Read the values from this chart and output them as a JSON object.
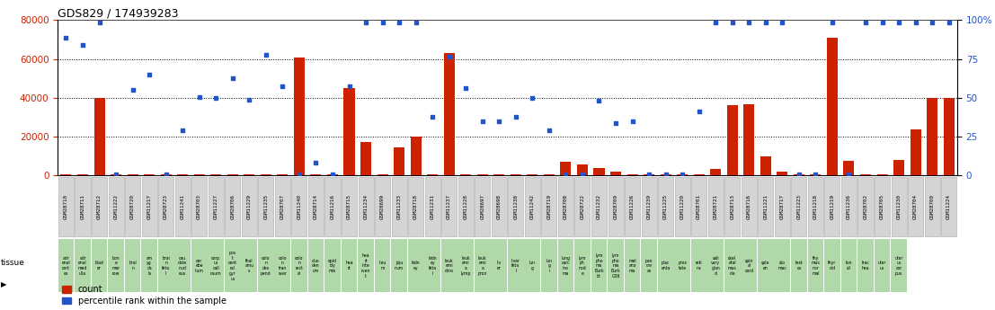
{
  "title": "GDS829 / 174939283",
  "samples": [
    "GSM28710",
    "GSM28711",
    "GSM28712",
    "GSM11222",
    "GSM28720",
    "GSM11217",
    "GSM28723",
    "GSM11241",
    "GSM28703",
    "GSM11227",
    "GSM28706",
    "GSM11229",
    "GSM11235",
    "GSM28707",
    "GSM11240",
    "GSM28714",
    "GSM11216",
    "GSM28715",
    "GSM11234",
    "GSM28699",
    "GSM11233",
    "GSM28718",
    "GSM11231",
    "GSM11237",
    "GSM11228",
    "GSM28697",
    "GSM28698",
    "GSM11238",
    "GSM11242",
    "GSM28719",
    "GSM28708",
    "GSM28722",
    "GSM11232",
    "GSM28709",
    "GSM11226",
    "GSM11239",
    "GSM11225",
    "GSM11220",
    "GSM28701",
    "GSM28721",
    "GSM28713",
    "GSM28716",
    "GSM11221",
    "GSM28717",
    "GSM11223",
    "GSM11218",
    "GSM11219",
    "GSM11236",
    "GSM28702",
    "GSM28705",
    "GSM11230",
    "GSM28704",
    "GSM28700",
    "GSM11224"
  ],
  "tissues": [
    "adr\nenal\ncort\nex",
    "adr\nenal\nmed\nulla",
    "blad\ner",
    "bon\ne\nmar\nrow",
    "brai\nn",
    "am\nyg\nda\nla",
    "brai\nn\nfeta\nl",
    "cau\ndate\nnucl\neus",
    "cer\nebe\nllum",
    "corp\nus\ncall\nosum",
    "pos\nt\ncent\nral\ngyr\nus",
    "thal\namu\ns",
    "colo\nn\ndes\npend",
    "colo\nn\ntran\nsver",
    "colo\nn\nrect\nal",
    "duo\nden\num",
    "epid\nidy\nmis",
    "hea\nrt",
    "hea\nrt\ninte\nrven\nt",
    "ileu\nm",
    "jeju\nnum",
    "kidn\ney",
    "kidn\ney\nfeta\nl",
    "leuk\nemi\nchro",
    "leuk\nemi\na\nlymp",
    "leuk\nemi\na\npron",
    "liv\ner",
    "liver\nfeta\nl",
    "lun\ng",
    "lun\ng\ni",
    "lung\ncarc\nino\nma",
    "lym\nph\nnod\ne",
    "lym\npho\nma\nBurk\nitt",
    "lym\npho\nma\nBurk\nG36",
    "mel\nano\nma",
    "pan\ncre\nas",
    "plac\nenta",
    "pros\ntate",
    "reti\nna",
    "sali\nvary\nglan\nd",
    "skel\netal\nmus\ncle",
    "spin\nal\ncord",
    "sple\nen",
    "sto\nmac",
    "test\nes",
    "thy\nmus\nnor\nmal",
    "thyr\noid",
    "ton\nsil",
    "trac\nhea",
    "uter\nus",
    "uter\nus\ncor\npus"
  ],
  "counts": [
    500,
    500,
    40000,
    500,
    500,
    500,
    500,
    500,
    500,
    500,
    500,
    500,
    500,
    500,
    60500,
    500,
    500,
    45000,
    17000,
    500,
    14500,
    20000,
    500,
    63000,
    500,
    500,
    500,
    500,
    500,
    500,
    7000,
    5500,
    3500,
    2000,
    500,
    500,
    500,
    500,
    500,
    3000,
    36000,
    36500,
    9500,
    2000,
    500,
    500,
    71000,
    7500,
    500,
    500,
    8000,
    23500,
    40000,
    40000
  ],
  "percentiles": [
    71000,
    67000,
    79000,
    500,
    44000,
    52000,
    500,
    23000,
    40500,
    40000,
    50000,
    39000,
    62000,
    46000,
    500,
    6500,
    500,
    46000,
    79000,
    79000,
    79000,
    79000,
    30000,
    61000,
    45000,
    28000,
    28000,
    30000,
    40000,
    23000,
    500,
    500,
    38500,
    27000,
    28000,
    500,
    500,
    500,
    33000,
    79000,
    79000,
    79000,
    79000,
    79000,
    500,
    500,
    79000,
    500,
    79000,
    79000,
    79000,
    79000,
    79000,
    79000
  ],
  "bar_color": "#cc2200",
  "dot_color": "#2255cc",
  "ylim_left": [
    0,
    80000
  ],
  "ylim_right": [
    0,
    100
  ],
  "yticks_left": [
    0,
    20000,
    40000,
    60000,
    80000
  ],
  "yticks_right": [
    0,
    25,
    50,
    75,
    100
  ],
  "ylabel_left_color": "#cc2200",
  "ylabel_right_color": "#2255cc",
  "legend_count_label": "count",
  "legend_percentile_label": "percentile rank within the sample"
}
